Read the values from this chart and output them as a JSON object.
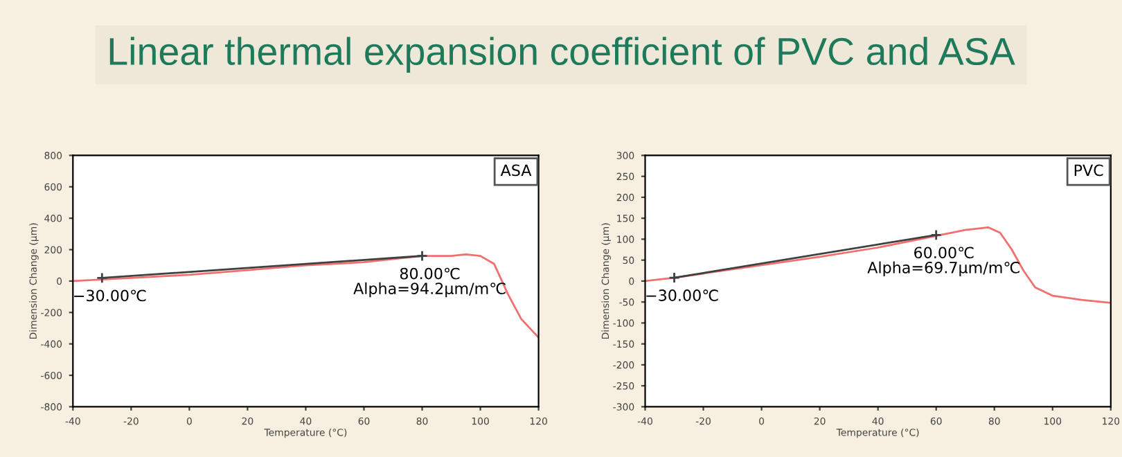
{
  "chart_data": [
    {
      "type": "line",
      "title": "Linear thermal expansion coefficient of PVC and ASA",
      "xlabel": "Temperature (°C)",
      "ylabel": "Dimension Change (µm)",
      "xlim": [
        -40,
        120
      ],
      "xticks": [
        -40,
        -20,
        0,
        20,
        40,
        60,
        80,
        100,
        120
      ],
      "ylim": [
        -800,
        800
      ],
      "yticks": [
        -800,
        -600,
        -400,
        -200,
        0,
        200,
        400,
        600,
        800
      ],
      "grid": false,
      "series": [
        {
          "color": "#f07070",
          "x": [
            -40,
            -30,
            -20,
            0,
            20,
            40,
            60,
            80,
            90,
            95,
            100,
            104.7,
            109.4,
            114,
            120
          ],
          "values": [
            0,
            10,
            20,
            40,
            70,
            100,
            120,
            160,
            160,
            170,
            160,
            110,
            -80,
            -240,
            -360
          ]
        },
        {
          "type": "line",
          "color": "#404040",
          "marker": "cross",
          "x": [
            -30,
            80
          ],
          "values": [
            20,
            160
          ]
        }
      ],
      "annotations": [
        "ASA",
        {
          "text": "−30.00℃",
          "x": -30,
          "y": 20
        },
        {
          "text": "80.00℃\nAlpha=94.2μm/m℃",
          "x": 80,
          "y": 160
        }
      ]
    },
    {
      "type": "line",
      "xlabel": "Temperature (°C)",
      "ylabel": "Dimension Change (µm)",
      "xlim": [
        -40,
        120
      ],
      "xticks": [
        -40,
        -20,
        0,
        20,
        40,
        60,
        80,
        100,
        120
      ],
      "ylim": [
        -300,
        300
      ],
      "yticks": [
        -300,
        -250,
        -200,
        -150,
        -100,
        -50,
        0,
        50,
        100,
        150,
        200,
        250,
        300
      ],
      "grid": false,
      "series": [
        {
          "color": "#f07070",
          "x": [
            -40,
            -30,
            -20,
            0,
            20,
            40,
            60,
            70,
            78,
            82,
            86,
            90,
            94,
            100,
            110,
            120
          ],
          "values": [
            0,
            8,
            18,
            38,
            58,
            80,
            108,
            122,
            128,
            115,
            75,
            25,
            -15,
            -35,
            -45,
            -52
          ]
        },
        {
          "type": "line",
          "color": "#404040",
          "marker": "cross",
          "x": [
            -30,
            60
          ],
          "values": [
            8,
            110
          ]
        }
      ],
      "annotations": [
        "PVC",
        {
          "text": "−30.00℃",
          "x": -30,
          "y": 8
        },
        {
          "text": "60.00℃\nAlpha=69.7μm/m℃",
          "x": 60,
          "y": 110
        }
      ]
    }
  ]
}
